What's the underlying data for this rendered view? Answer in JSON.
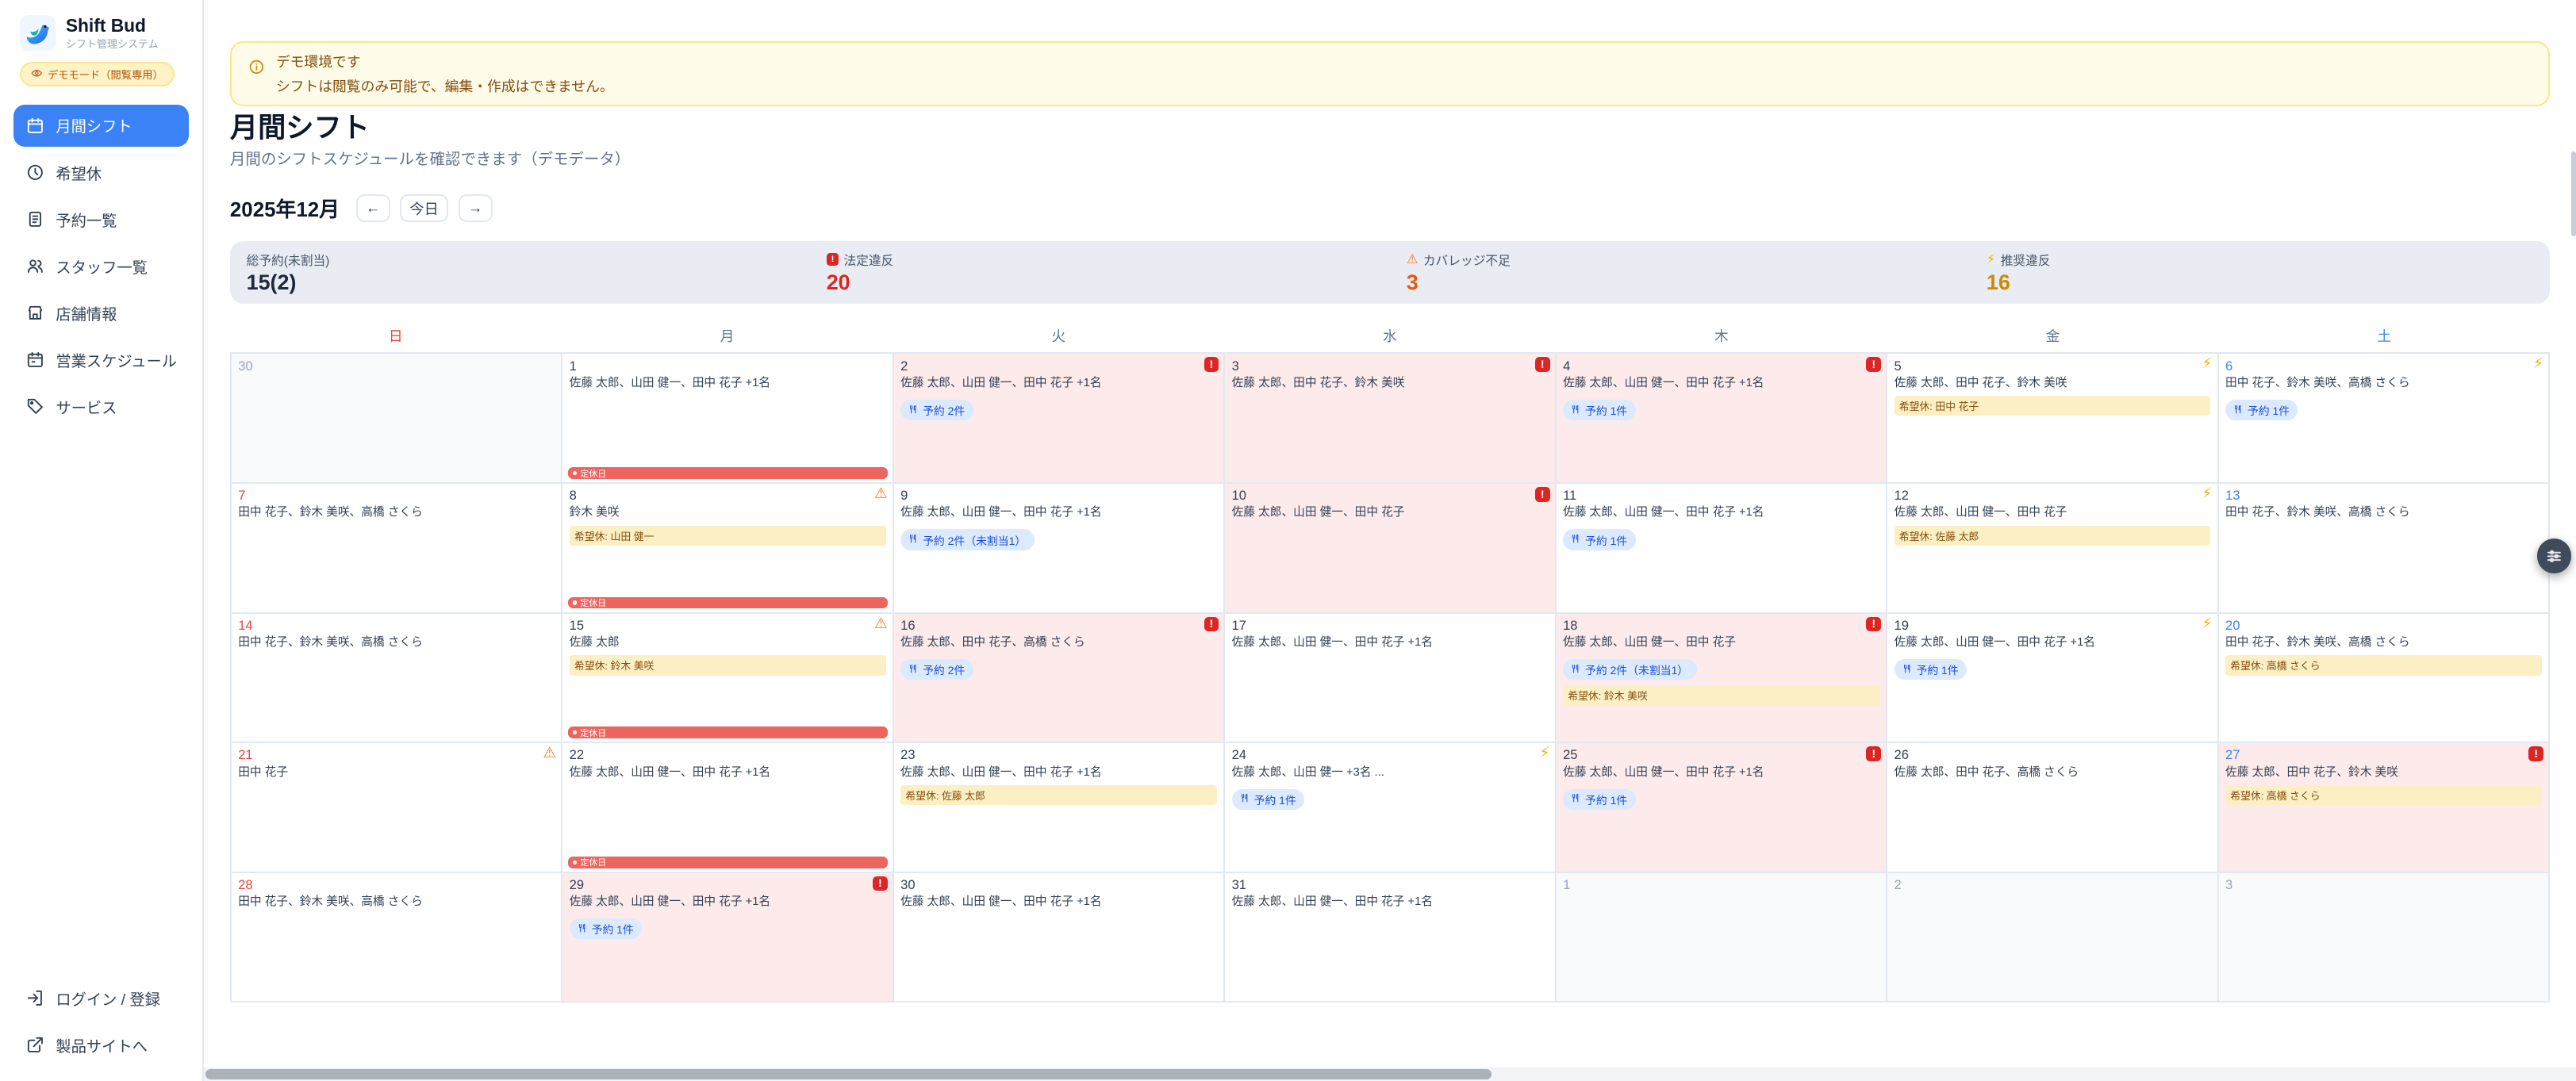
{
  "app": {
    "name": "Shift Bud",
    "tagline": "シフト管理システム",
    "demo_badge": "デモモード（閲覧専用）"
  },
  "sidebar": {
    "items": [
      {
        "key": "monthly-shift",
        "label": "月間シフト",
        "icon": "calendar-icon",
        "active": true
      },
      {
        "key": "day-off-requests",
        "label": "希望休",
        "icon": "clock-icon",
        "active": false
      },
      {
        "key": "reservations",
        "label": "予約一覧",
        "icon": "list-icon",
        "active": false
      },
      {
        "key": "staff-list",
        "label": "スタッフ一覧",
        "icon": "users-icon",
        "active": false
      },
      {
        "key": "store-info",
        "label": "店舗情報",
        "icon": "store-icon",
        "active": false
      },
      {
        "key": "business-schedule",
        "label": "営業スケジュール",
        "icon": "schedule-icon",
        "active": false
      },
      {
        "key": "services",
        "label": "サービス",
        "icon": "tag-icon",
        "active": false
      }
    ],
    "footer": [
      {
        "key": "login",
        "label": "ログイン / 登録",
        "icon": "login-icon"
      },
      {
        "key": "product-site",
        "label": "製品サイトへ",
        "icon": "external-link-icon"
      }
    ]
  },
  "banner": {
    "title": "デモ環境です",
    "message": "シフトは閲覧のみ可能で、編集・作成はできません。"
  },
  "page": {
    "title": "月間シフト",
    "subtitle": "月間のシフトスケジュールを確認できます（デモデータ）"
  },
  "toolbar": {
    "month_label": "2025年12月",
    "prev_label": "←",
    "today_label": "今日",
    "next_label": "→"
  },
  "stats": [
    {
      "label": "総予約(未割当)",
      "value": "15(2)",
      "icon": null,
      "value_color": "#1e293b"
    },
    {
      "label": "法定違反",
      "value": "20",
      "icon": "violation-icon",
      "value_color": "#dc2626"
    },
    {
      "label": "カバレッジ不足",
      "value": "3",
      "icon": "warning-icon",
      "value_color": "#ea580c"
    },
    {
      "label": "推奨違反",
      "value": "16",
      "icon": "lightning-icon",
      "value_color": "#ca8a04"
    }
  ],
  "calendar": {
    "weekdays": [
      {
        "label": "日",
        "color": "#ef4444"
      },
      {
        "label": "月",
        "color": "#64748b"
      },
      {
        "label": "火",
        "color": "#64748b"
      },
      {
        "label": "水",
        "color": "#64748b"
      },
      {
        "label": "木",
        "color": "#64748b"
      },
      {
        "label": "金",
        "color": "#64748b"
      },
      {
        "label": "土",
        "color": "#3b82f6"
      }
    ],
    "closed_bar_label": "定休日",
    "cells": [
      {
        "day": "30",
        "muted": true
      },
      {
        "day": "1",
        "staff": "佐藤 太郎、山田 健一、田中 花子 +1名",
        "closed_bar": true
      },
      {
        "day": "2",
        "pink": true,
        "badge": "violation",
        "staff": "佐藤 太郎、山田 健一、田中 花子 +1名",
        "reservation": "予約 2件"
      },
      {
        "day": "3",
        "pink": true,
        "badge": "violation",
        "staff": "佐藤 太郎、田中 花子、鈴木 美咲"
      },
      {
        "day": "4",
        "pink": true,
        "badge": "violation",
        "staff": "佐藤 太郎、山田 健一、田中 花子 +1名",
        "reservation": "予約 1件"
      },
      {
        "day": "5",
        "badge": "lightning",
        "staff": "佐藤 太郎、田中 花子、鈴木 美咲",
        "wish": "希望休: 田中 花子"
      },
      {
        "day": "6",
        "badge": "lightning",
        "staff": "田中 花子、鈴木 美咲、高橋 さくら",
        "reservation": "予約 1件"
      },
      {
        "day": "7",
        "staff": "田中 花子、鈴木 美咲、高橋 さくら"
      },
      {
        "day": "8",
        "badge": "warning",
        "staff": "鈴木 美咲",
        "wish": "希望休: 山田 健一",
        "closed_bar": true
      },
      {
        "day": "9",
        "staff": "佐藤 太郎、山田 健一、田中 花子 +1名",
        "reservation": "予約 2件（未割当1）"
      },
      {
        "day": "10",
        "pink": true,
        "badge": "violation",
        "staff": "佐藤 太郎、山田 健一、田中 花子"
      },
      {
        "day": "11",
        "staff": "佐藤 太郎、山田 健一、田中 花子 +1名",
        "reservation": "予約 1件"
      },
      {
        "day": "12",
        "badge": "lightning",
        "staff": "佐藤 太郎、山田 健一、田中 花子",
        "wish": "希望休: 佐藤 太郎"
      },
      {
        "day": "13",
        "staff": "田中 花子、鈴木 美咲、高橋 さくら"
      },
      {
        "day": "14",
        "staff": "田中 花子、鈴木 美咲、高橋 さくら"
      },
      {
        "day": "15",
        "badge": "warning",
        "staff": "佐藤 太郎",
        "wish": "希望休: 鈴木 美咲",
        "closed_bar": true
      },
      {
        "day": "16",
        "pink": true,
        "badge": "violation",
        "staff": "佐藤 太郎、田中 花子、高橋 さくら",
        "reservation": "予約 2件"
      },
      {
        "day": "17",
        "staff": "佐藤 太郎、山田 健一、田中 花子 +1名"
      },
      {
        "day": "18",
        "pink": true,
        "badge": "violation",
        "staff": "佐藤 太郎、山田 健一、田中 花子",
        "reservation": "予約 2件（未割当1）",
        "wish": "希望休: 鈴木 美咲"
      },
      {
        "day": "19",
        "badge": "lightning",
        "staff": "佐藤 太郎、山田 健一、田中 花子 +1名",
        "reservation": "予約 1件"
      },
      {
        "day": "20",
        "staff": "田中 花子、鈴木 美咲、高橋 さくら",
        "wish": "希望休: 高橋 さくら"
      },
      {
        "day": "21",
        "badge": "warning",
        "staff": "田中 花子"
      },
      {
        "day": "22",
        "staff": "佐藤 太郎、山田 健一、田中 花子 +1名",
        "closed_bar": true
      },
      {
        "day": "23",
        "staff": "佐藤 太郎、山田 健一、田中 花子 +1名",
        "wish": "希望休: 佐藤 太郎"
      },
      {
        "day": "24",
        "badge": "lightning",
        "staff": "佐藤 太郎、山田 健一 +3名 ...",
        "reservation": "予約 1件"
      },
      {
        "day": "25",
        "pink": true,
        "badge": "violation",
        "staff": "佐藤 太郎、山田 健一、田中 花子 +1名",
        "reservation": "予約 1件"
      },
      {
        "day": "26",
        "staff": "佐藤 太郎、田中 花子、高橋 さくら"
      },
      {
        "day": "27",
        "pink": true,
        "badge": "violation",
        "staff": "佐藤 太郎、田中 花子、鈴木 美咲",
        "wish": "希望休: 高橋 さくら"
      },
      {
        "day": "28",
        "staff": "田中 花子、鈴木 美咲、高橋 さくら"
      },
      {
        "day": "29",
        "pink": true,
        "badge": "violation",
        "staff": "佐藤 太郎、山田 健一、田中 花子 +1名",
        "reservation": "予約 1件"
      },
      {
        "day": "30",
        "staff": "佐藤 太郎、山田 健一、田中 花子 +1名"
      },
      {
        "day": "31",
        "staff": "佐藤 太郎、山田 健一、田中 花子 +1名"
      },
      {
        "day": "1",
        "muted": true
      },
      {
        "day": "2",
        "muted": true
      },
      {
        "day": "3",
        "muted": true
      }
    ]
  },
  "colors": {
    "accent": "#3b82f6",
    "violation_bg": "#fcebea",
    "violation_red": "#dc2626",
    "coverage_orange": "#ea580c",
    "recommend_yellow": "#ca8a04",
    "wish_bg": "#fcefc3",
    "reservation_bg": "#dbeafe",
    "sunday": "#ef4444",
    "saturday": "#3b82f6"
  }
}
